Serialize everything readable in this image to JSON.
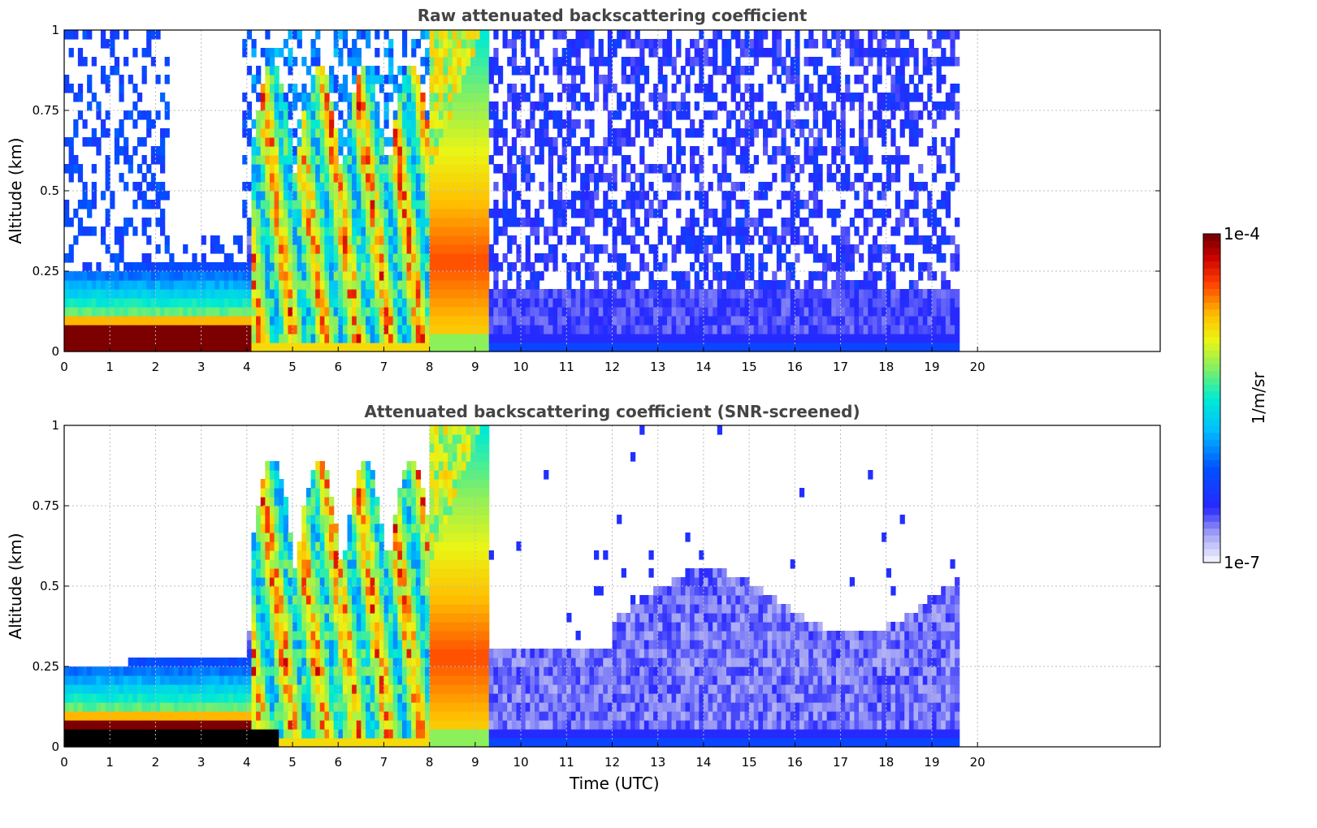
{
  "chart_data": [
    {
      "type": "heatmap",
      "title": "Raw attenuated backscattering coefficient",
      "xlabel": "",
      "ylabel": "Altitude (km)",
      "xlim": [
        0,
        24
      ],
      "ylim": [
        0,
        1
      ],
      "x_ticks": [
        "0",
        "1",
        "2",
        "3",
        "4",
        "5",
        "6",
        "7",
        "8",
        "9",
        "10",
        "11",
        "12",
        "13",
        "14",
        "15",
        "16",
        "17",
        "18",
        "19",
        "20"
      ],
      "y_ticks": [
        "0",
        "0.25",
        "0.5",
        "0.75",
        "1"
      ],
      "data_end_hour": 19.6,
      "grid": true,
      "screened": false
    },
    {
      "type": "heatmap",
      "title": "Attenuated backscattering coefficient (SNR-screened)",
      "xlabel": "Time (UTC)",
      "ylabel": "Altitude (km)",
      "xlim": [
        0,
        24
      ],
      "ylim": [
        0,
        1
      ],
      "x_ticks": [
        "0",
        "1",
        "2",
        "3",
        "4",
        "5",
        "6",
        "7",
        "8",
        "9",
        "10",
        "11",
        "12",
        "13",
        "14",
        "15",
        "16",
        "17",
        "18",
        "19",
        "20"
      ],
      "y_ticks": [
        "0",
        "0.25",
        "0.5",
        "0.75",
        "1"
      ],
      "data_end_hour": 19.6,
      "grid": true,
      "screened": true
    }
  ],
  "colorbar": {
    "label": "1/m/sr",
    "max_label": "1e-4",
    "min_label": "1e-7",
    "scale": "log",
    "colormap": "jet",
    "range": [
      1e-07,
      0.0001
    ]
  }
}
